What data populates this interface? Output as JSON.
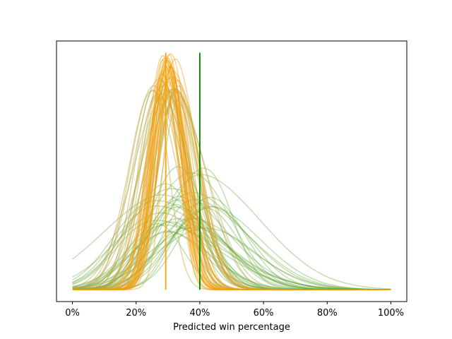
{
  "chart_data": {
    "type": "line",
    "title": "",
    "xlabel": "Predicted win percentage",
    "ylabel": "",
    "xlim": [
      -0.05,
      1.05
    ],
    "ylim": [
      -0.05,
      1.05
    ],
    "x_ticks": [
      0,
      0.2,
      0.4,
      0.6,
      0.8,
      1.0
    ],
    "x_tick_labels": [
      "0%",
      "20%",
      "40%",
      "60%",
      "80%",
      "100%"
    ],
    "y_ticks_visible": false,
    "colors": {
      "green_curves": "#5aa02c",
      "olive_curves": "#b5a642",
      "orange_curves": "#f0a010",
      "green_line": "#008000",
      "orange_line": "#f5a400"
    },
    "families": [
      {
        "name": "green-curves",
        "color": "#5aa02c",
        "opacity": 0.35,
        "count": 34,
        "mean_range": [
          0.26,
          0.44
        ],
        "sd_range": [
          0.085,
          0.16
        ],
        "peak_range": [
          0.24,
          0.52
        ]
      },
      {
        "name": "olive-curves",
        "color": "#b5a642",
        "opacity": 0.45,
        "count": 22,
        "mean_range": [
          0.25,
          0.34
        ],
        "sd_range": [
          0.05,
          0.085
        ],
        "peak_range": [
          0.8,
          0.9
        ]
      },
      {
        "name": "orange-curves",
        "color": "#f0a010",
        "opacity": 0.45,
        "count": 26,
        "mean_range": [
          0.28,
          0.335
        ],
        "sd_range": [
          0.04,
          0.06
        ],
        "peak_range": [
          0.87,
          1.0
        ]
      }
    ],
    "reference_lines": [
      {
        "name": "green-reference-line",
        "x": 0.4,
        "y_range": [
          0,
          1.0
        ],
        "color": "#008000"
      },
      {
        "name": "orange-reference-line",
        "x": 0.293,
        "y_range": [
          0,
          1.0
        ],
        "color": "#f5a400"
      }
    ]
  }
}
